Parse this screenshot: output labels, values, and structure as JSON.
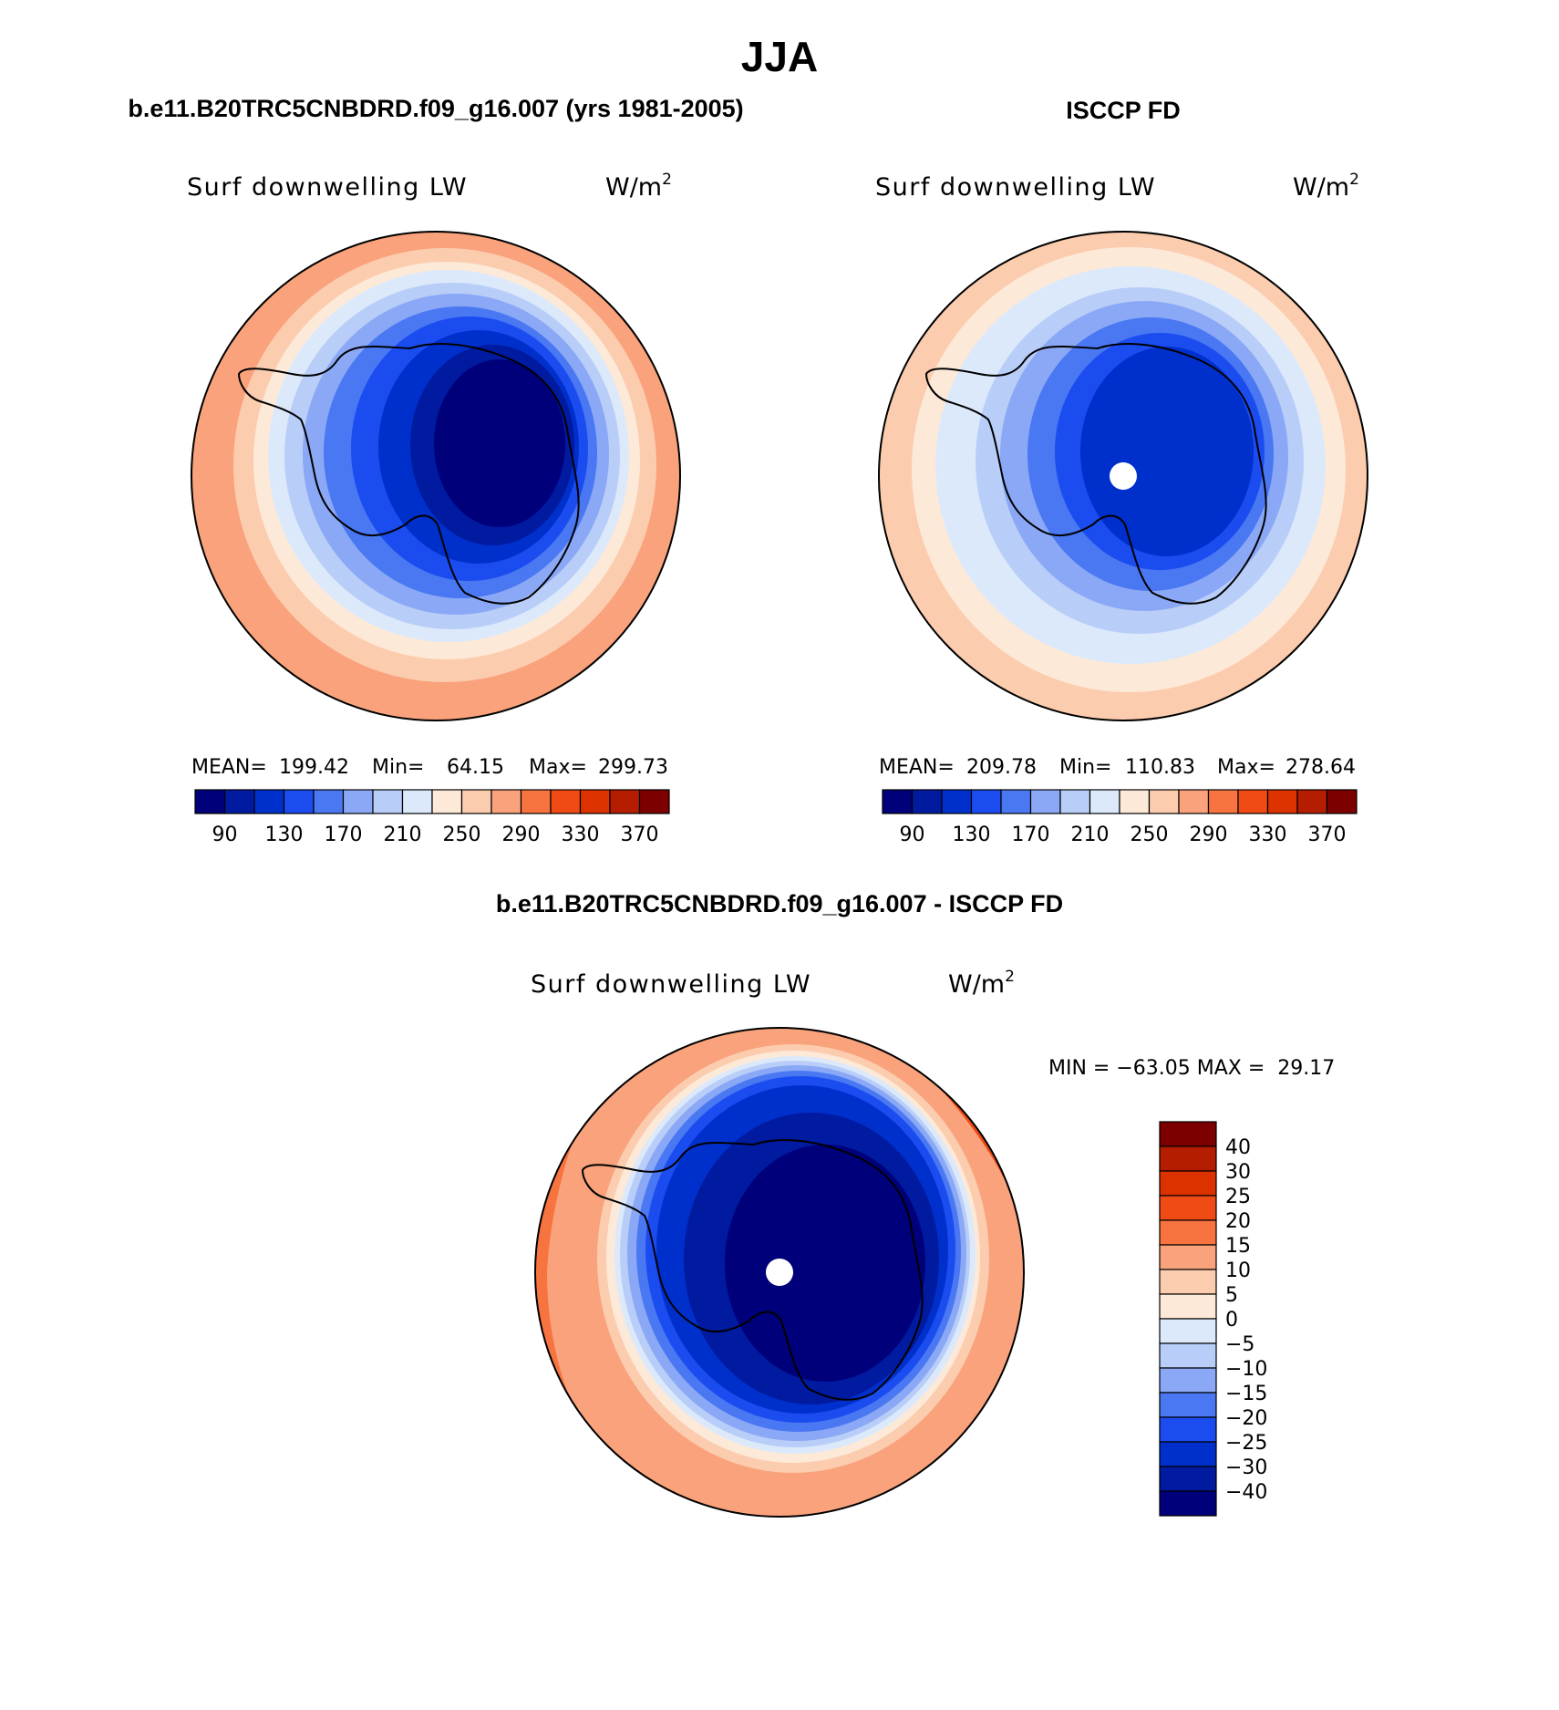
{
  "figure": {
    "title": "JJA",
    "panels": [
      {
        "id": "model",
        "header": "b.e11.B20TRC5CNBDRD.f09_g16.007 (yrs 1981-2005)",
        "variable": "Surf downwelling LW",
        "units_base": "W/m",
        "units_exp": "2",
        "stats": {
          "mean_label": "MEAN=",
          "mean": "199.42",
          "min_label": "Min=",
          "min": "64.15",
          "max_label": "Max=",
          "max": "299.73"
        },
        "polar_hole": false
      },
      {
        "id": "obs",
        "header": "ISCCP FD",
        "variable": "Surf downwelling LW",
        "units_base": "W/m",
        "units_exp": "2",
        "stats": {
          "mean_label": "MEAN=",
          "mean": "209.78",
          "min_label": "Min=",
          "min": "110.83",
          "max_label": "Max=",
          "max": "278.64"
        },
        "polar_hole": true
      },
      {
        "id": "diff",
        "header": "b.e11.B20TRC5CNBDRD.f09_g16.007 - ISCCP FD",
        "variable": "Surf downwelling LW",
        "units_base": "W/m",
        "units_exp": "2",
        "minmax_text": "MIN = −63.05 MAX =  29.17",
        "polar_hole": true
      }
    ],
    "abs_colorbar": {
      "labels": [
        "90",
        "130",
        "170",
        "210",
        "250",
        "290",
        "330",
        "370"
      ],
      "colors": [
        "#00007a",
        "#001aa0",
        "#0030cc",
        "#1a4cf0",
        "#4a78f2",
        "#8aa8f5",
        "#b8cef8",
        "#dce9fb",
        "#fde9d8",
        "#fcccaf",
        "#f9a27c",
        "#f7733f",
        "#f04a15",
        "#db3200",
        "#b51d00",
        "#7d0000"
      ]
    },
    "diff_colorbar": {
      "labels": [
        "40",
        "30",
        "25",
        "20",
        "15",
        "10",
        "5",
        "0",
        "−5",
        "−10",
        "−15",
        "−20",
        "−25",
        "−30",
        "−40"
      ],
      "colors_top_to_bottom": [
        "#7d0000",
        "#b51d00",
        "#db3200",
        "#f04a15",
        "#f7733f",
        "#f9a27c",
        "#fcccaf",
        "#fde9d8",
        "#dce9fb",
        "#b8cef8",
        "#8aa8f5",
        "#4a78f2",
        "#1a4cf0",
        "#0030cc",
        "#001aa0",
        "#00007a"
      ]
    }
  }
}
